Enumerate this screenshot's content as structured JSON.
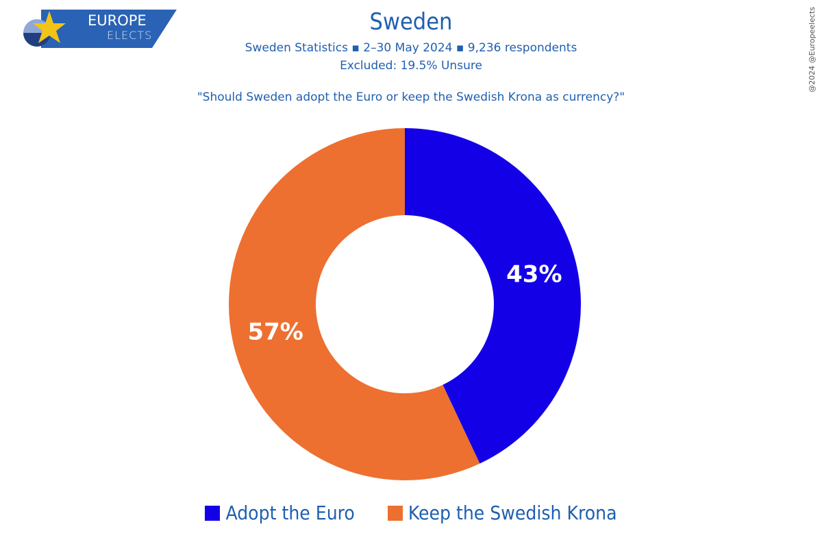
{
  "logo": {
    "line1": "EUROPE",
    "line2": "ELECTS",
    "color_bar": "#2a63b5",
    "color_star": "#f2c418"
  },
  "header": {
    "title": "Sweden",
    "subtitle": "Sweden Statistics ▪ 2–30 May 2024 ▪ 9,236 respondents",
    "excluded": "Excluded: 19.5% Unsure",
    "question": "\"Should Sweden adopt the Euro or keep the Swedish Krona as currency?\""
  },
  "credit": "@2024 @Europeelects",
  "chart_data": {
    "type": "pie",
    "donut": true,
    "title": "\"Should Sweden adopt the Euro or keep the Swedish Krona as currency?\"",
    "categories": [
      "Adopt the Euro",
      "Keep the Swedish Krona"
    ],
    "values": [
      43,
      57
    ],
    "labels": [
      "43%",
      "57%"
    ],
    "colors": [
      "#1400e6",
      "#ed7030"
    ],
    "start_angle_deg": 0,
    "direction": "clockwise",
    "legend": "bottom"
  }
}
